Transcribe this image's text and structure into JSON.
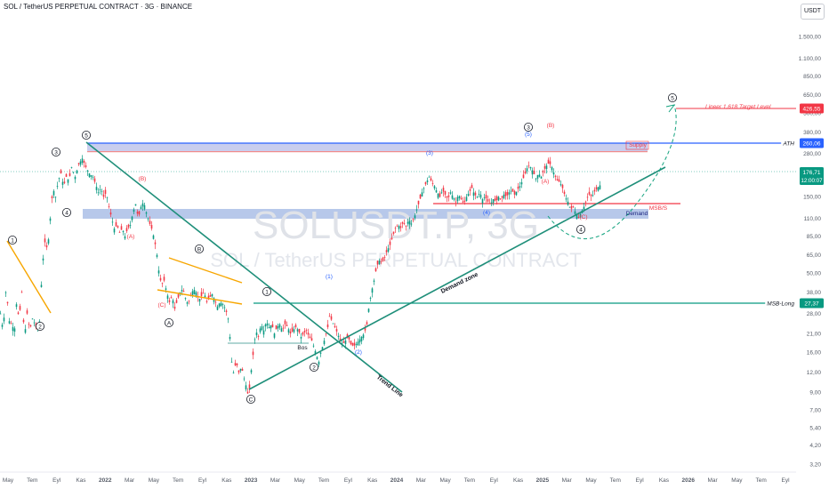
{
  "header": {
    "title": "SOL / TetherUS PERPETUAL CONTRACT · 3G · BINANCE",
    "unit_button": "USDT"
  },
  "chart_data": {
    "type": "candlestick",
    "symbol": "SOLUSDT.P, 3G",
    "watermark": "SOLUSDT.P, 3G",
    "watermark_sub": "SOL / TetherUS PERPETUAL CONTRACT",
    "y_scale": "log",
    "ylim": [
      2.9,
      2100
    ],
    "y_ticks": [
      "3,20",
      "4,20",
      "5,40",
      "7,00",
      "9,00",
      "12,00",
      "16,00",
      "21,00",
      "28,00",
      "38,00",
      "50,00",
      "65,00",
      "85,00",
      "110,00",
      "150,00",
      "200,00",
      "280,00",
      "380,00",
      "500,00",
      "650,00",
      "850,00",
      "1.100,00",
      "1.500,00"
    ],
    "x_ticks": [
      "May",
      "Tem",
      "Eyl",
      "Kas",
      "2022",
      "Mar",
      "May",
      "Tem",
      "Eyl",
      "Kas",
      "2023",
      "Mar",
      "May",
      "Tem",
      "Eyl",
      "Kas",
      "2024",
      "Mar",
      "May",
      "Tem",
      "Eyl",
      "Kas",
      "2025",
      "Mar",
      "May",
      "Tem",
      "Eyl",
      "Kas",
      "2026",
      "Mar",
      "May",
      "Tem",
      "Eyl"
    ],
    "x_ticks_bold": [
      "2022",
      "2023",
      "2024",
      "2025",
      "2026"
    ],
    "price_path": [
      [
        0,
        28
      ],
      [
        3,
        22
      ],
      [
        6,
        38
      ],
      [
        9,
        30
      ],
      [
        11,
        21
      ],
      [
        13,
        28
      ],
      [
        15,
        19
      ],
      [
        18,
        32
      ],
      [
        21,
        26
      ],
      [
        24,
        38
      ],
      [
        27,
        20
      ],
      [
        30,
        28
      ],
      [
        33,
        22
      ],
      [
        36,
        26
      ],
      [
        39,
        24
      ],
      [
        41,
        22
      ],
      [
        44,
        25
      ],
      [
        47,
        55
      ],
      [
        50,
        78
      ],
      [
        53,
        70
      ],
      [
        56,
        110
      ],
      [
        59,
        170
      ],
      [
        62,
        150
      ],
      [
        65,
        190
      ],
      [
        68,
        210
      ],
      [
        71,
        175
      ],
      [
        74,
        200
      ],
      [
        77,
        190
      ],
      [
        80,
        230
      ],
      [
        84,
        200
      ],
      [
        88,
        240
      ],
      [
        92,
        260
      ],
      [
        96,
        230
      ],
      [
        100,
        210
      ],
      [
        104,
        200
      ],
      [
        107,
        180
      ],
      [
        110,
        160
      ],
      [
        113,
        170
      ],
      [
        116,
        150
      ],
      [
        119,
        160
      ],
      [
        122,
        130
      ],
      [
        125,
        110
      ],
      [
        128,
        95
      ],
      [
        131,
        100
      ],
      [
        134,
        90
      ],
      [
        137,
        95
      ],
      [
        140,
        85
      ],
      [
        143,
        95
      ],
      [
        146,
        100
      ],
      [
        149,
        120
      ],
      [
        152,
        135
      ],
      [
        155,
        110
      ],
      [
        158,
        130
      ],
      [
        161,
        140
      ],
      [
        164,
        120
      ],
      [
        167,
        105
      ],
      [
        170,
        95
      ],
      [
        173,
        82
      ],
      [
        176,
        65
      ],
      [
        178,
        52
      ],
      [
        181,
        42
      ],
      [
        184,
        45
      ],
      [
        187,
        38
      ],
      [
        190,
        33
      ],
      [
        193,
        36
      ],
      [
        196,
        30
      ],
      [
        199,
        34
      ],
      [
        202,
        38
      ],
      [
        205,
        40
      ],
      [
        208,
        35
      ],
      [
        211,
        32
      ],
      [
        214,
        36
      ],
      [
        217,
        40
      ],
      [
        220,
        38
      ],
      [
        223,
        34
      ],
      [
        226,
        36
      ],
      [
        229,
        38
      ],
      [
        232,
        33
      ],
      [
        235,
        35
      ],
      [
        238,
        37
      ],
      [
        241,
        34
      ],
      [
        244,
        31
      ],
      [
        247,
        33
      ],
      [
        250,
        32
      ],
      [
        253,
        30
      ],
      [
        256,
        26
      ],
      [
        258,
        20
      ],
      [
        260,
        14
      ],
      [
        262,
        12
      ],
      [
        265,
        14
      ],
      [
        268,
        12
      ],
      [
        271,
        13
      ],
      [
        274,
        11
      ],
      [
        277,
        9.5
      ],
      [
        279,
        8.3
      ],
      [
        281,
        11
      ],
      [
        283,
        14
      ],
      [
        285,
        17
      ],
      [
        287,
        22
      ],
      [
        290,
        20
      ],
      [
        293,
        24
      ],
      [
        296,
        22
      ],
      [
        299,
        25
      ],
      [
        302,
        23
      ],
      [
        305,
        24
      ],
      [
        308,
        21
      ],
      [
        311,
        23
      ],
      [
        314,
        24
      ],
      [
        317,
        22
      ],
      [
        320,
        24
      ],
      [
        323,
        23
      ],
      [
        326,
        21
      ],
      [
        329,
        22
      ],
      [
        332,
        23
      ],
      [
        335,
        22
      ],
      [
        338,
        20
      ],
      [
        341,
        21
      ],
      [
        344,
        22
      ],
      [
        347,
        20
      ],
      [
        350,
        19
      ],
      [
        353,
        17
      ],
      [
        356,
        15
      ],
      [
        358,
        14
      ],
      [
        360,
        16
      ],
      [
        363,
        18
      ],
      [
        366,
        21
      ],
      [
        368,
        23
      ],
      [
        370,
        27
      ],
      [
        373,
        25
      ],
      [
        376,
        23
      ],
      [
        379,
        21
      ],
      [
        382,
        19
      ],
      [
        385,
        18
      ],
      [
        388,
        19
      ],
      [
        391,
        20
      ],
      [
        394,
        18
      ],
      [
        397,
        17.5
      ],
      [
        400,
        18
      ],
      [
        403,
        19
      ],
      [
        406,
        20
      ],
      [
        409,
        21
      ],
      [
        412,
        24
      ],
      [
        414,
        30
      ],
      [
        417,
        38
      ],
      [
        420,
        45
      ],
      [
        423,
        55
      ],
      [
        426,
        60
      ],
      [
        429,
        58
      ],
      [
        432,
        63
      ],
      [
        435,
        70
      ],
      [
        438,
        75
      ],
      [
        441,
        85
      ],
      [
        444,
        95
      ],
      [
        447,
        100
      ],
      [
        450,
        96
      ],
      [
        453,
        105
      ],
      [
        456,
        98
      ],
      [
        459,
        108
      ],
      [
        462,
        102
      ],
      [
        465,
        110
      ],
      [
        468,
        125
      ],
      [
        471,
        140
      ],
      [
        474,
        160
      ],
      [
        477,
        175
      ],
      [
        480,
        190
      ],
      [
        482,
        200
      ],
      [
        485,
        185
      ],
      [
        488,
        175
      ],
      [
        491,
        160
      ],
      [
        494,
        150
      ],
      [
        497,
        165
      ],
      [
        500,
        155
      ],
      [
        503,
        145
      ],
      [
        506,
        160
      ],
      [
        509,
        150
      ],
      [
        512,
        140
      ],
      [
        515,
        155
      ],
      [
        518,
        145
      ],
      [
        521,
        135
      ],
      [
        524,
        150
      ],
      [
        527,
        160
      ],
      [
        530,
        170
      ],
      [
        533,
        155
      ],
      [
        536,
        150
      ],
      [
        539,
        160
      ],
      [
        542,
        145
      ],
      [
        545,
        150
      ],
      [
        548,
        140
      ],
      [
        551,
        135
      ],
      [
        554,
        145
      ],
      [
        557,
        140
      ],
      [
        560,
        150
      ],
      [
        563,
        145
      ],
      [
        566,
        155
      ],
      [
        569,
        150
      ],
      [
        572,
        160
      ],
      [
        575,
        165
      ],
      [
        578,
        155
      ],
      [
        581,
        165
      ],
      [
        584,
        175
      ],
      [
        587,
        190
      ],
      [
        590,
        210
      ],
      [
        593,
        235
      ],
      [
        596,
        230
      ],
      [
        599,
        215
      ],
      [
        602,
        195
      ],
      [
        605,
        210
      ],
      [
        608,
        200
      ],
      [
        611,
        220
      ],
      [
        614,
        235
      ],
      [
        617,
        245
      ],
      [
        620,
        230
      ],
      [
        623,
        205
      ],
      [
        626,
        190
      ],
      [
        629,
        185
      ],
      [
        632,
        170
      ],
      [
        635,
        150
      ],
      [
        638,
        140
      ],
      [
        641,
        125
      ],
      [
        644,
        130
      ],
      [
        647,
        118
      ],
      [
        650,
        112
      ],
      [
        653,
        120
      ],
      [
        656,
        130
      ],
      [
        659,
        145
      ],
      [
        662,
        155
      ],
      [
        665,
        150
      ],
      [
        668,
        162
      ],
      [
        671,
        170
      ],
      [
        674,
        177
      ]
    ],
    "annotations": [
      {
        "label": "1",
        "style": "circle",
        "x": 14,
        "y": 270
      },
      {
        "label": "2",
        "style": "circle",
        "x": 45,
        "y": 367
      },
      {
        "label": "3",
        "style": "circle",
        "x": 63,
        "y": 171
      },
      {
        "label": "4",
        "style": "circle",
        "x": 75,
        "y": 239
      },
      {
        "label": "5",
        "style": "circle",
        "x": 97,
        "y": 152
      },
      {
        "label": "(B)",
        "style": "red",
        "x": 160,
        "y": 203
      },
      {
        "label": "(A)",
        "style": "red",
        "x": 147,
        "y": 268
      },
      {
        "label": "(C)",
        "style": "red",
        "x": 182,
        "y": 345
      },
      {
        "label": "A",
        "style": "circle",
        "x": 190,
        "y": 363
      },
      {
        "label": "B",
        "style": "circle",
        "x": 224,
        "y": 280
      },
      {
        "label": "C",
        "style": "circle",
        "x": 282,
        "y": 449
      },
      {
        "label": "1",
        "style": "circle",
        "x": 300,
        "y": 328
      },
      {
        "label": "2",
        "style": "circle",
        "x": 353,
        "y": 413
      },
      {
        "label": "(1)",
        "style": "blue",
        "x": 370,
        "y": 313
      },
      {
        "label": "(2)",
        "style": "blue",
        "x": 403,
        "y": 398
      },
      {
        "label": "Bos",
        "style": "black",
        "x": 340,
        "y": 393
      },
      {
        "label": "(3)",
        "style": "blue",
        "x": 483,
        "y": 174
      },
      {
        "label": "(4)",
        "style": "blue",
        "x": 547,
        "y": 241
      },
      {
        "label": "3",
        "style": "circle",
        "x": 594,
        "y": 143
      },
      {
        "label": "(5)",
        "style": "blue",
        "x": 594,
        "y": 153
      },
      {
        "label": "(B)",
        "style": "red",
        "x": 619,
        "y": 143
      },
      {
        "label": "(A)",
        "style": "red",
        "x": 613,
        "y": 206
      },
      {
        "label": "(C)",
        "style": "red",
        "x": 656,
        "y": 246
      },
      {
        "label": "4",
        "style": "circle",
        "x": 653,
        "y": 258
      },
      {
        "label": "5",
        "style": "circle",
        "x": 756,
        "y": 110
      },
      {
        "label": "Supply",
        "style": "red",
        "x": 717,
        "y": 165
      },
      {
        "label": "MSB/S",
        "style": "red",
        "x": 740,
        "y": 236
      },
      {
        "label": "Demand",
        "style": "navy",
        "x": 716,
        "y": 242
      },
      {
        "label": "Lineer 1,618 Target Level",
        "style": "red",
        "x": 793,
        "y": 122
      }
    ],
    "trendline_labels": [
      "Demand zone",
      "Trend Line"
    ],
    "price_labels": [
      {
        "name": "Lineer 1,618 Target Level",
        "value": "426,55",
        "color": "#f23645"
      },
      {
        "name": "ATH",
        "value": "260,06",
        "color": "#2962ff"
      },
      {
        "name": "last",
        "value": "176,71",
        "color": "#089981",
        "sub": "12:00:07"
      },
      {
        "name": "MSB-Long",
        "value": "27,37",
        "color": "#089981"
      }
    ]
  }
}
